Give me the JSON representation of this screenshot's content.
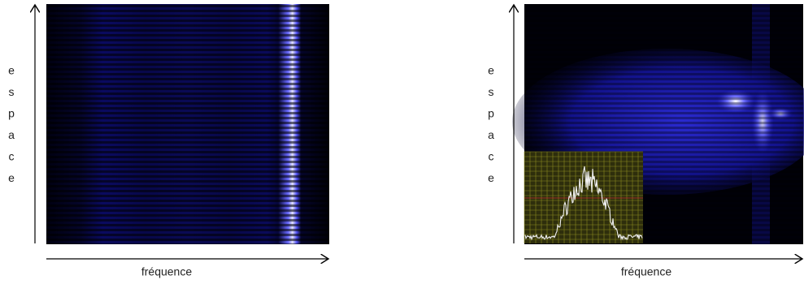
{
  "panels": [
    {
      "y_label": [
        "e",
        "s",
        "p",
        "a",
        "c",
        "e"
      ],
      "x_label": "fréquence"
    },
    {
      "y_label": [
        "e",
        "s",
        "p",
        "a",
        "c",
        "e"
      ],
      "x_label": "fréquence"
    }
  ]
}
